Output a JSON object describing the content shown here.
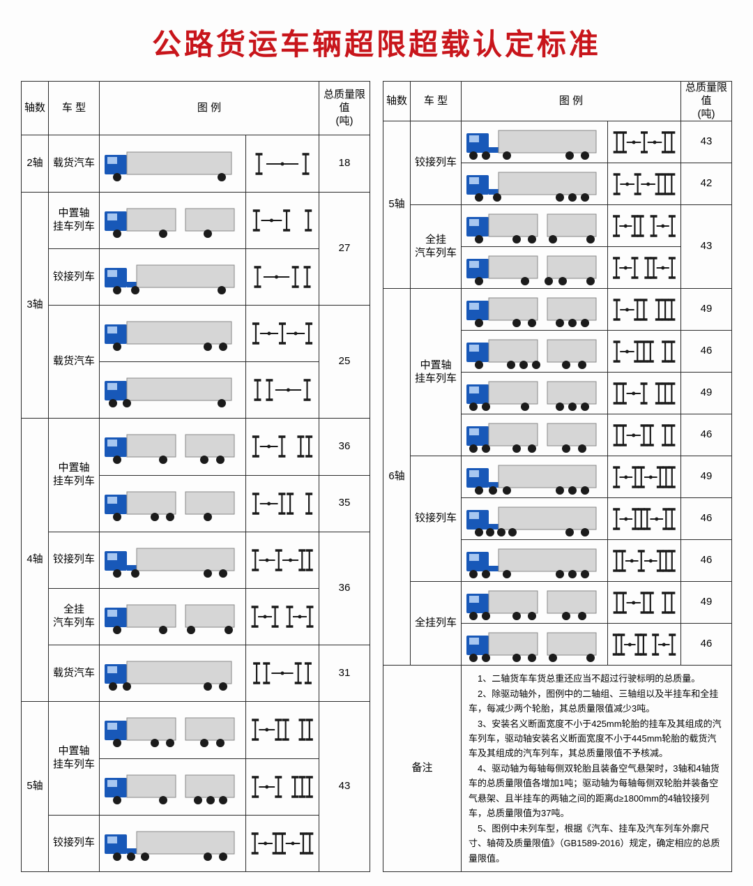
{
  "title": "公路货运车辆超限超载认定标准",
  "headers": {
    "axle": "轴数",
    "type": "车 型",
    "diagram": "图 例",
    "limit": "总质量限值\n(吨)"
  },
  "colors": {
    "title": "#c8151b",
    "border": "#2a2a2a",
    "cab": "#1858b8",
    "cab_window": "#a8c7f0",
    "cargo": "#d6d6d6",
    "cargo_stroke": "#888888",
    "wheel": "#1b1b1b",
    "axle_line": "#1a1a1a"
  },
  "left_table": [
    {
      "axle": "2轴",
      "groups": [
        {
          "type": "载货汽车",
          "rows": [
            {
              "truck": "rigid-2",
              "diag": "I--I",
              "limit": "18"
            }
          ]
        }
      ]
    },
    {
      "axle": "3轴",
      "groups": [
        {
          "type": "中置轴\n挂车列车",
          "rows": [
            {
              "truck": "center-3a",
              "diag": "I--I..I"
            }
          ],
          "limit_group": "27"
        },
        {
          "type": "铰接列车",
          "rows": [
            {
              "truck": "artic-3",
              "diag": "I--II"
            }
          ],
          "limit_group_merge": true
        },
        {
          "type": "载货汽车",
          "rows": [
            {
              "truck": "rigid-3a",
              "diag": "I--I-I"
            },
            {
              "truck": "rigid-3b",
              "diag": "II--I"
            }
          ],
          "limit_group": "25"
        }
      ]
    },
    {
      "axle": "4轴",
      "groups": [
        {
          "type": "中置轴\n挂车列车",
          "rows": [
            {
              "truck": "center-4a",
              "diag": "I--I..II",
              "limit": "36"
            },
            {
              "truck": "center-4b",
              "diag": "I--II..I",
              "limit": "35"
            }
          ]
        },
        {
          "type": "铰接列车",
          "rows": [
            {
              "truck": "artic-4",
              "diag": "I--I-II"
            }
          ],
          "limit_group": "36"
        },
        {
          "type": "全挂\n汽车列车",
          "rows": [
            {
              "truck": "full-4",
              "diag": "I--I..I-I"
            }
          ],
          "limit_group_merge": true
        },
        {
          "type": "载货汽车",
          "rows": [
            {
              "truck": "rigid-4",
              "diag": "II--II",
              "limit": "31"
            }
          ]
        }
      ]
    },
    {
      "axle": "5轴",
      "groups": [
        {
          "type": "中置轴\n挂车列车",
          "rows": [
            {
              "truck": "center-5a",
              "diag": "I--II..II"
            },
            {
              "truck": "center-5b",
              "diag": "I--I..III"
            }
          ],
          "limit_group": "43"
        },
        {
          "type": "铰接列车",
          "rows": [
            {
              "truck": "artic-5a",
              "diag": "I--II-II"
            }
          ],
          "limit_group_merge": true
        }
      ]
    }
  ],
  "right_table": [
    {
      "axle": "5轴",
      "groups": [
        {
          "type": "铰接列车",
          "rows": [
            {
              "truck": "artic-5b",
              "diag": "II-I--II",
              "limit": "43"
            },
            {
              "truck": "artic-5c",
              "diag": "I--I-III",
              "limit": "42"
            }
          ]
        },
        {
          "type": "全挂\n汽车列车",
          "rows": [
            {
              "truck": "full-5a",
              "diag": "I--II..I-I"
            },
            {
              "truck": "full-5b",
              "diag": "I--I..II-I"
            }
          ],
          "limit_group": "43"
        }
      ]
    },
    {
      "axle": "6轴",
      "groups": [
        {
          "type": "中置轴\n挂车列车",
          "rows": [
            {
              "truck": "center-6a",
              "diag": "I--II..III",
              "limit": "49"
            },
            {
              "truck": "center-6b",
              "diag": "I--III..II",
              "limit": "46"
            },
            {
              "truck": "center-6c",
              "diag": "II--I..III",
              "limit": "49"
            },
            {
              "truck": "center-6d",
              "diag": "II--II..II",
              "limit": "46"
            }
          ]
        },
        {
          "type": "铰接列车",
          "rows": [
            {
              "truck": "artic-6a",
              "diag": "I--II-III",
              "limit": "49"
            },
            {
              "truck": "artic-6b",
              "diag": "I--III-II",
              "limit": "46"
            },
            {
              "truck": "artic-6c",
              "diag": "II--I-III",
              "limit": "46"
            }
          ]
        },
        {
          "type": "全挂列车",
          "rows": [
            {
              "truck": "full-6a",
              "diag": "II--II..II",
              "limit": "49"
            },
            {
              "truck": "full-6b",
              "diag": "II--II..I-I",
              "limit": "46"
            }
          ]
        }
      ]
    }
  ],
  "notes_label": "备注",
  "notes": [
    "1、二轴货车车货总重还应当不超过行驶标明的总质量。",
    "2、除驱动轴外，图例中的二轴组、三轴组以及半挂车和全挂车，每减少两个轮胎，其总质量限值减少3吨。",
    "3、安装名义断面宽度不小于425mm轮胎的挂车及其组成的汽车列车，驱动轴安装名义断面宽度不小于445mm轮胎的载货汽车及其组成的汽车列车，其总质量限值不予核减。",
    "4、驱动轴为每轴每侧双轮胎且装备空气悬架时，3轴和4轴货车的总质量限值各增加1吨；驱动轴为每轴每侧双轮胎并装备空气悬架、且半挂车的两轴之间的距离d≥1800mm的4轴铰接列车，总质量限值为37吨。",
    "5、图例中未列车型，根据《汽车、挂车及汽车列车外廓尺寸、轴荷及质量限值》（GB1589-2016）规定，确定相应的总质量限值。"
  ]
}
